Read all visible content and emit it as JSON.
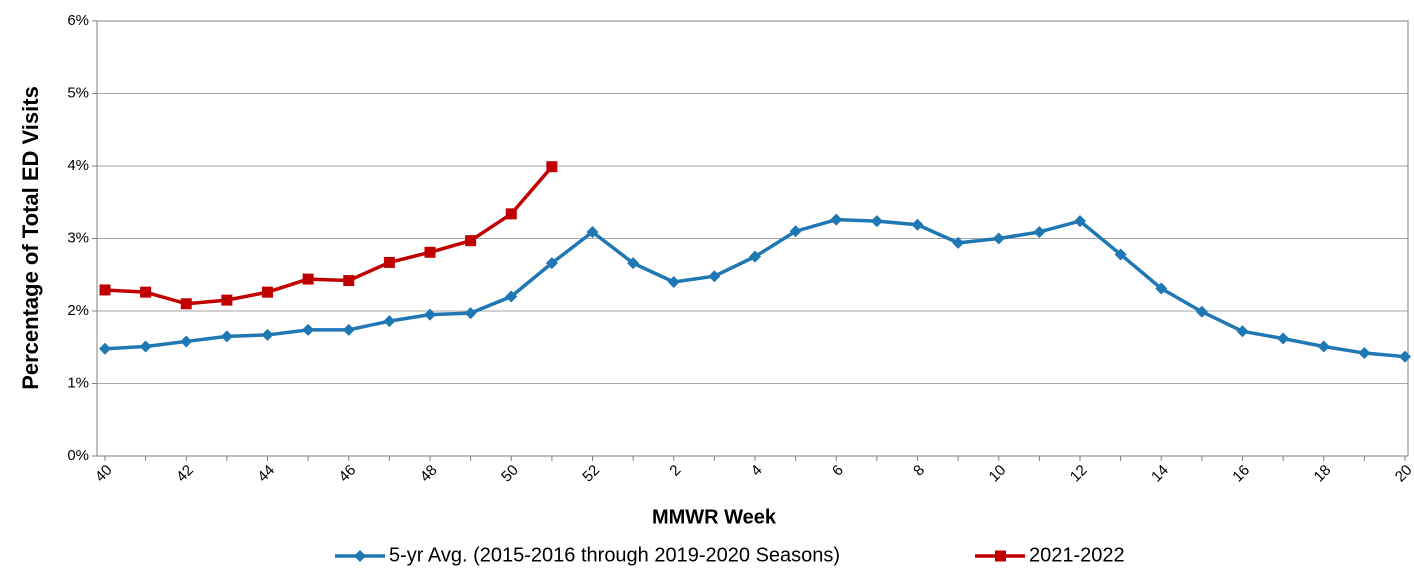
{
  "chart_data": {
    "type": "line",
    "x_label": "MMWR Week",
    "y_label": "Percentage of Total ED Visits",
    "categories": [
      40,
      null,
      42,
      null,
      44,
      null,
      46,
      null,
      48,
      null,
      50,
      null,
      52,
      null,
      2,
      null,
      4,
      null,
      6,
      null,
      8,
      null,
      10,
      null,
      12,
      null,
      14,
      null,
      16,
      null,
      18,
      null,
      20
    ],
    "series": [
      {
        "name": "5-yr Avg. (2015-2016 through 2019-2020 Seasons)",
        "color": "#1f77b4",
        "marker": "diamond",
        "values": [
          1.48,
          1.51,
          1.58,
          1.65,
          1.67,
          1.74,
          1.74,
          1.86,
          1.95,
          1.97,
          2.2,
          2.66,
          3.09,
          2.66,
          2.4,
          2.48,
          2.75,
          3.1,
          3.26,
          3.24,
          3.19,
          2.94,
          3.0,
          3.09,
          3.24,
          2.78,
          2.31,
          1.99,
          1.72,
          1.62,
          1.51,
          1.42,
          1.37
        ]
      },
      {
        "name": "2021-2022",
        "color": "#c00000",
        "marker": "square",
        "values": [
          2.29,
          2.26,
          2.1,
          2.15,
          2.26,
          2.44,
          2.42,
          2.67,
          2.81,
          2.97,
          3.34,
          3.99,
          null,
          null,
          null,
          null,
          null,
          null,
          null,
          null,
          null,
          null,
          null,
          null,
          null,
          null,
          null,
          null,
          null,
          null,
          null,
          null,
          null
        ]
      }
    ],
    "ylim": [
      0,
      6
    ],
    "yticks": [
      {
        "value": 0,
        "label": "0%"
      },
      {
        "value": 1,
        "label": "1%"
      },
      {
        "value": 2,
        "label": "2%"
      },
      {
        "value": 3,
        "label": "3%"
      },
      {
        "value": 4,
        "label": "4%"
      },
      {
        "value": 5,
        "label": "5%"
      },
      {
        "value": 6,
        "label": "6%"
      }
    ],
    "grid": true
  }
}
